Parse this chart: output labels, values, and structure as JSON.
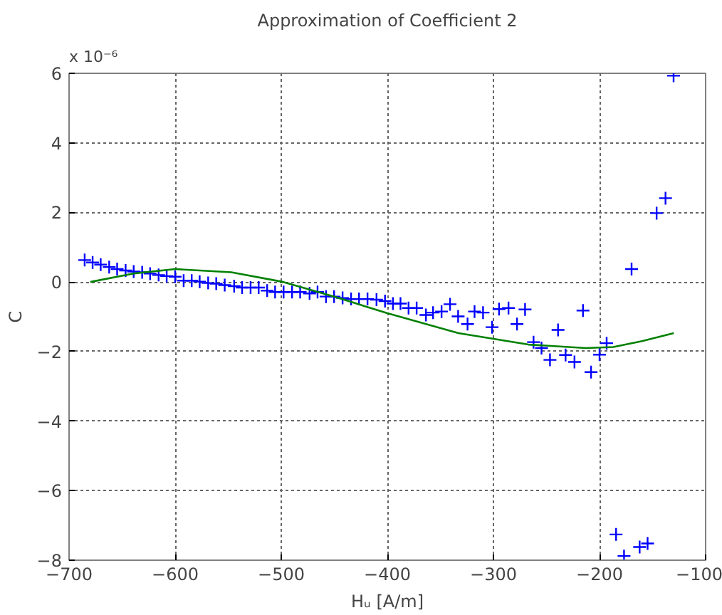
{
  "chart_data": {
    "type": "scatter",
    "title": "Approximation of Coefficient 2",
    "xlabel": "Hᵤ [A/m]",
    "ylabel": "C",
    "annotations": [
      "x 10⁻⁶"
    ],
    "xlim": [
      -700,
      -100
    ],
    "xticks": [
      -700,
      -600,
      -500,
      -400,
      -300,
      -200,
      -100
    ],
    "ylim": [
      -8,
      6
    ],
    "yticks": [
      -8,
      -6,
      -4,
      -2,
      0,
      2,
      4,
      6
    ],
    "grid": true,
    "marker": "cross",
    "series": [
      {
        "color": "#0000ff",
        "x": [
          -685.3,
          -677.8,
          -670.2,
          -662.2,
          -654.7,
          -646.7,
          -639.1,
          -631.1,
          -623.6,
          -615.6,
          -608,
          -600,
          -592,
          -584.4,
          -576.9,
          -568.9,
          -561.3,
          -553.3,
          -544.4,
          -536.9,
          -528.9,
          -521.3,
          -513.3,
          -505.8,
          -497.8,
          -489.8,
          -482.2,
          -473.3,
          -465.8,
          -457.8,
          -450.2,
          -442.2,
          -434.2,
          -426.7,
          -418.7,
          -410.2,
          -402.2,
          -394.7,
          -387.6,
          -380,
          -372.4,
          -363.6,
          -356.9,
          -348.9,
          -340.9,
          -333.3,
          -324.4,
          -317.8,
          -309.8,
          -301.3,
          -294.7,
          -285.8,
          -277.8,
          -270.2,
          -262.2,
          -254.7,
          -246.7,
          -239.1,
          -232,
          -223.6,
          -215.6,
          -208,
          -200,
          -193.3,
          -184.4,
          -176.9,
          -169.8,
          -162.2,
          -154.7,
          -146.2,
          -137.8,
          -130.2
        ],
        "values": [
          0.63,
          0.56,
          0.5,
          0.43,
          0.37,
          0.33,
          0.3,
          0.28,
          0.24,
          0.2,
          0.17,
          0.15,
          0.04,
          0.04,
          0.01,
          -0.03,
          -0.05,
          -0.09,
          -0.12,
          -0.16,
          -0.16,
          -0.16,
          -0.25,
          -0.29,
          -0.29,
          -0.29,
          -0.29,
          -0.33,
          -0.29,
          -0.42,
          -0.42,
          -0.46,
          -0.49,
          -0.49,
          -0.49,
          -0.51,
          -0.55,
          -0.62,
          -0.62,
          -0.75,
          -0.75,
          -0.95,
          -0.88,
          -0.85,
          -0.64,
          -0.99,
          -1.21,
          -0.85,
          -0.88,
          -1.3,
          -0.78,
          -0.75,
          -1.21,
          -0.79,
          -1.73,
          -1.9,
          -2.24,
          -1.38,
          -2.1,
          -2.3,
          -0.82,
          -2.59,
          -2.09,
          -1.76,
          -7.26,
          -7.88,
          0.37,
          -7.62,
          -7.52,
          1.98,
          2.41,
          5.93
        ]
      },
      {
        "type": "line",
        "color": "#008000",
        "marker": "none",
        "x": [
          -680,
          -640,
          -600,
          -547,
          -498,
          -450,
          -400,
          -333,
          -267,
          -213,
          -187,
          -160,
          -130
        ],
        "values": [
          0,
          0.24,
          0.37,
          0.28,
          0,
          -0.42,
          -0.9,
          -1.47,
          -1.8,
          -1.9,
          -1.87,
          -1.7,
          -1.47
        ]
      }
    ]
  }
}
